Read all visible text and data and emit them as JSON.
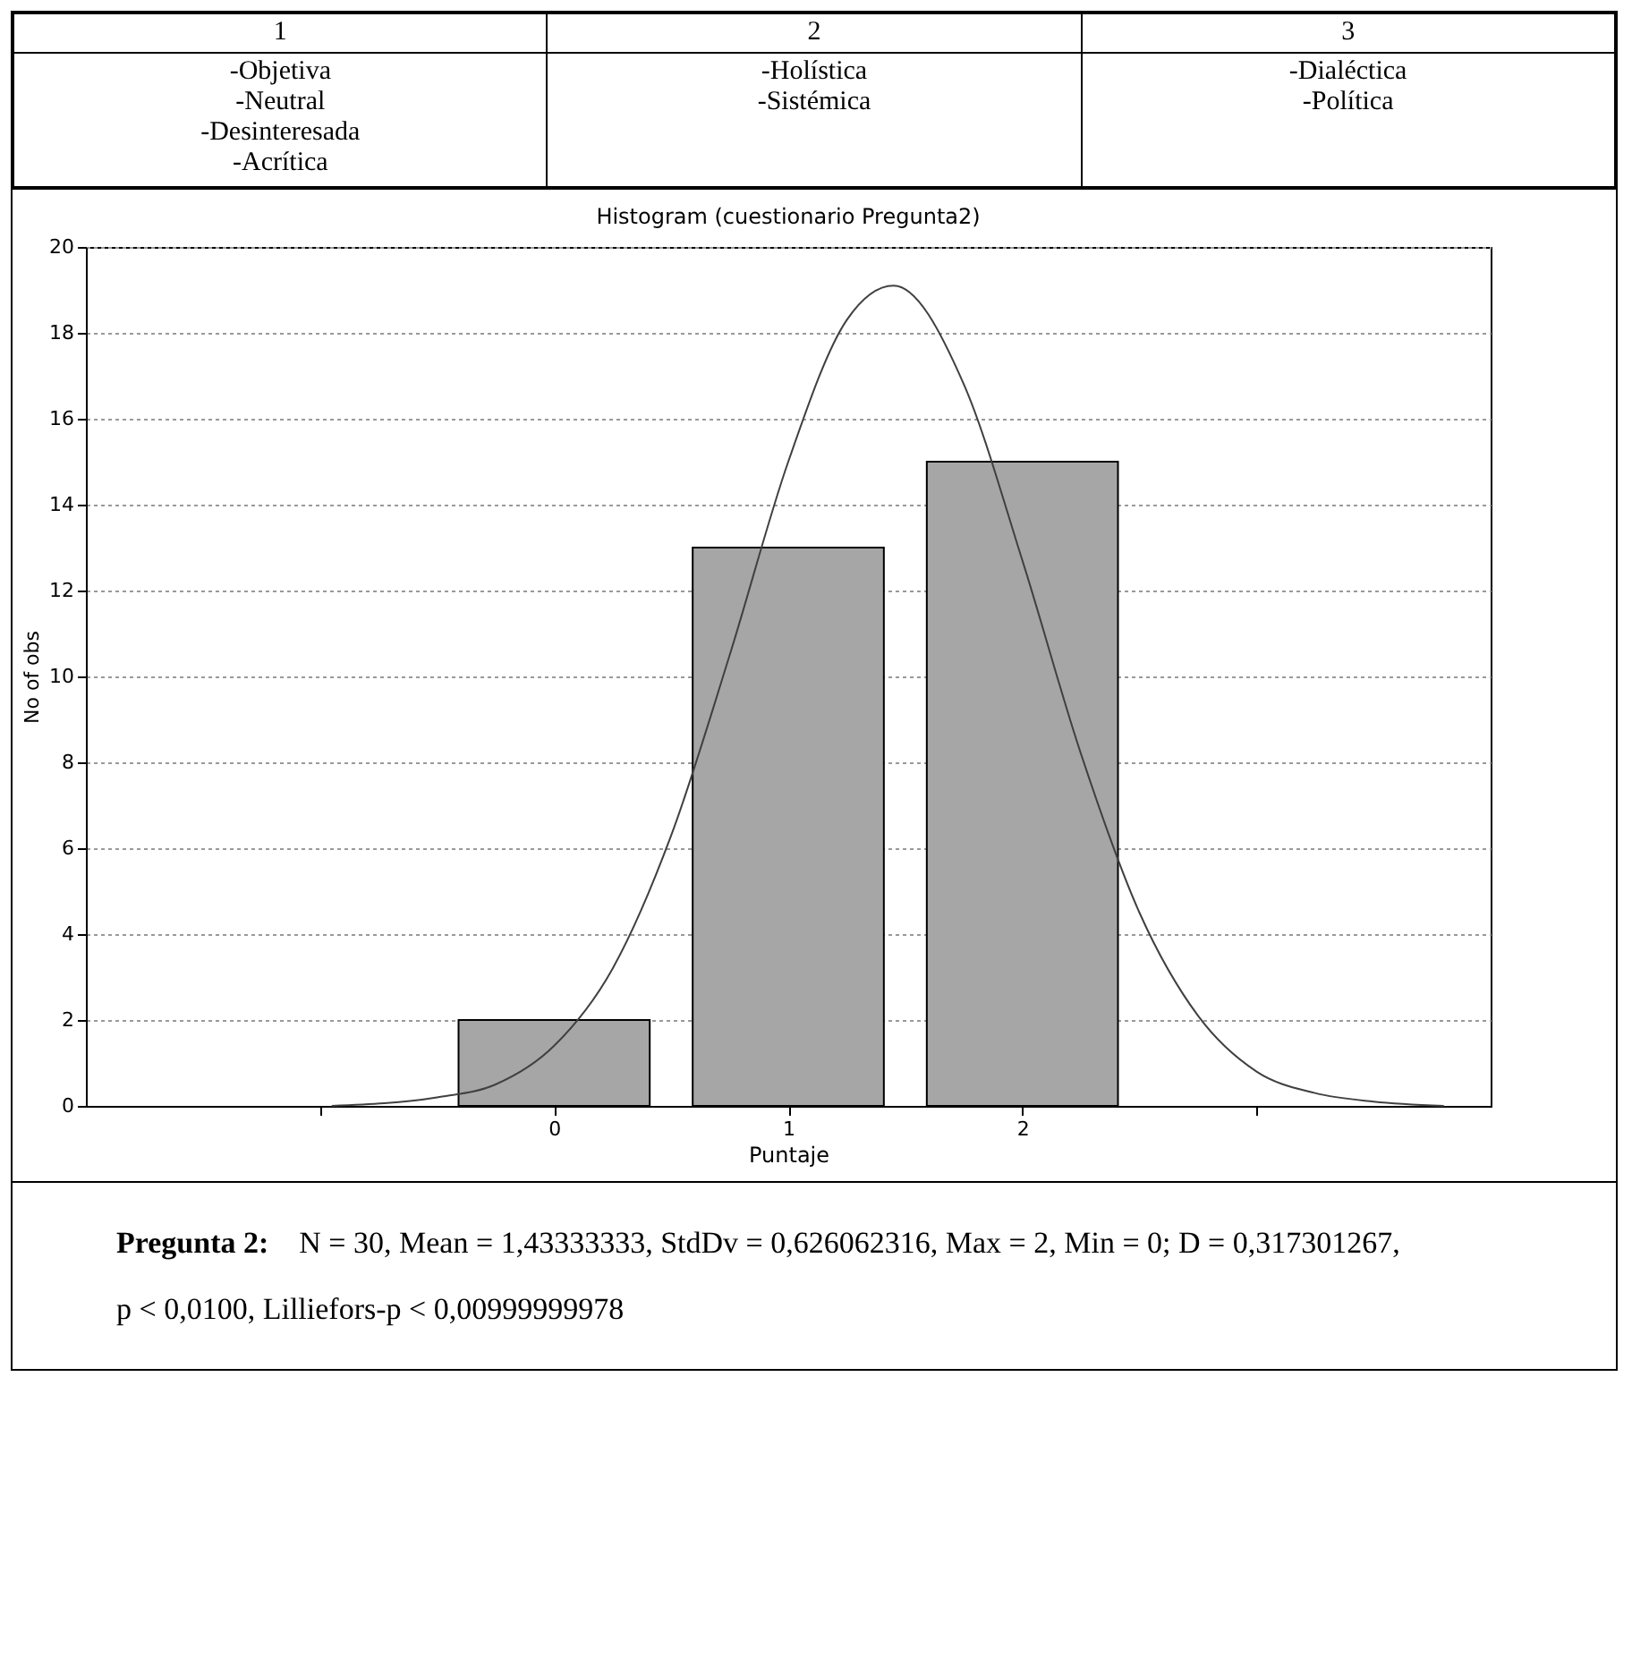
{
  "chart_data": {
    "type": "histogram",
    "title": "Histogram (cuestionario Pregunta2)",
    "xlabel": "Puntaje",
    "ylabel": "No of obs",
    "series": [
      {
        "bins": [
          -0.5,
          0.5,
          1.5,
          2.5
        ],
        "values": [
          2,
          13,
          15
        ],
        "color": "#a6a6a6"
      },
      {
        "type": "line",
        "color": "#404040",
        "x": [
          -0.95,
          -0.5,
          -0.25,
          0,
          0.25,
          0.5,
          0.75,
          1,
          1.25,
          1.45,
          1.75,
          2,
          2.25,
          2.5,
          2.75,
          3,
          3.25,
          3.5,
          3.8
        ],
        "values": [
          0,
          0.2,
          0.5,
          1.4,
          3.2,
          6.3,
          10.5,
          15,
          18.3,
          19.1,
          16.8,
          12.7,
          8.2,
          4.5,
          2.1,
          0.8,
          0.3,
          0.1,
          0
        ]
      }
    ],
    "xlim": [
      -2,
      4
    ],
    "xticks": [
      {
        "value": -1,
        "label": null
      },
      0,
      1,
      2,
      {
        "value": 3,
        "label": null
      }
    ],
    "ylim": [
      0,
      20
    ],
    "yticks": [
      0,
      2,
      4,
      6,
      8,
      10,
      12,
      14,
      16,
      18,
      20
    ],
    "grid": "y",
    "line_style": "solid",
    "annotations": [
      "1",
      "2",
      "3",
      "-Objetiva\n-Neutral\n-Desinteresada\n-Acrítica",
      "-Holística\n-Sistémica",
      "-Dialéctica\n-Política",
      "Pregunta 2:",
      "N = 30, Mean = 1,43333333, StdDv = 0,626062316, Max = 2, Min = 0;  D = 0,317301267,",
      "p < 0,0100, Lilliefors-p < 0,00999999978"
    ]
  }
}
